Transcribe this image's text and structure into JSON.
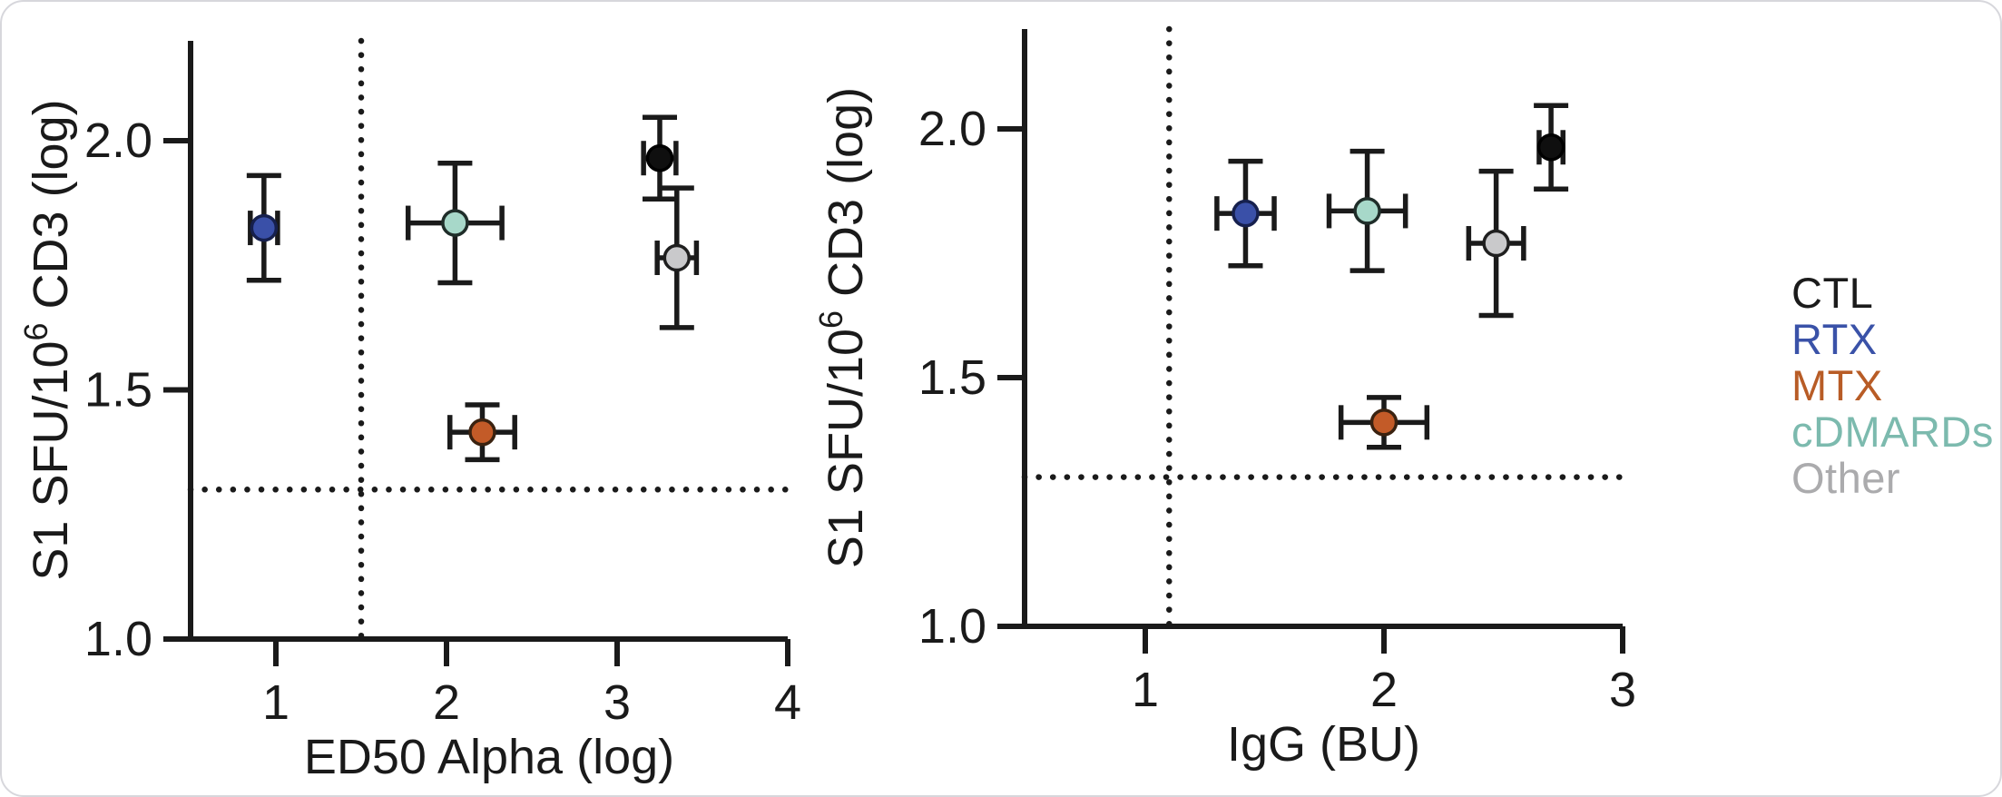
{
  "figure": {
    "background": "#ffffff",
    "border_color": "#d7d7dc",
    "text_color": "#1a1a1a"
  },
  "legend": {
    "items": [
      {
        "label": "CTL",
        "color": "#1b1b1b"
      },
      {
        "label": "RTX",
        "color": "#3a52a8"
      },
      {
        "label": "MTX",
        "color": "#b85c26"
      },
      {
        "label": "cDMARDs",
        "color": "#7cbaae"
      },
      {
        "label": "Other",
        "color": "#ababad"
      }
    ]
  },
  "marker_styles": {
    "CTL": {
      "fill": "#0f0f0f",
      "stroke": "#000000"
    },
    "RTX": {
      "fill": "#3a50a8",
      "stroke": "#16204d"
    },
    "MTX": {
      "fill": "#c35b28",
      "stroke": "#3a2210"
    },
    "cDMARDs": {
      "fill": "#a7d8c9",
      "stroke": "#1f2d29"
    },
    "Other": {
      "fill": "#c9c9cb",
      "stroke": "#1f1f1f"
    }
  },
  "chart_data": [
    {
      "type": "scatter",
      "title": "",
      "xlabel": "ED50 Alpha (log)",
      "ylabel": "S1 SFU/10⁶ CD3 (log)",
      "ylabel_parts": [
        {
          "t": "S1 SFU/10"
        },
        {
          "t": "6",
          "sup": true
        },
        {
          "t": " CD3 (log)"
        }
      ],
      "xlim": [
        0.5,
        4.0
      ],
      "ylim": [
        1.0,
        2.2
      ],
      "xticks": [
        1,
        2,
        3,
        4
      ],
      "yticks": [
        "1.0",
        "1.5",
        "2.0"
      ],
      "grid": false,
      "reference_lines": {
        "vertical_x": 1.5,
        "horizontal_y": 1.3,
        "style": "dotted"
      },
      "points": [
        {
          "group": "RTX",
          "x": 0.93,
          "y": 1.825,
          "xerr": 0.08,
          "yerr": 0.105
        },
        {
          "group": "cDMARDs",
          "x": 2.05,
          "y": 1.835,
          "xerr": 0.275,
          "yerr": 0.12
        },
        {
          "group": "MTX",
          "x": 2.21,
          "y": 1.415,
          "xerr": 0.19,
          "yerr": 0.055
        },
        {
          "group": "CTL",
          "x": 3.25,
          "y": 1.965,
          "xerr": 0.095,
          "yerr": 0.082
        },
        {
          "group": "Other",
          "x": 3.35,
          "y": 1.765,
          "xerr": 0.115,
          "yerr": 0.14
        }
      ]
    },
    {
      "type": "scatter",
      "title": "",
      "xlabel": "IgG (BU)",
      "ylabel": "S1 SFU/10⁶ CD3 (log)",
      "ylabel_parts": [
        {
          "t": "S1 SFU/10"
        },
        {
          "t": "6",
          "sup": true
        },
        {
          "t": " CD3 (log)"
        }
      ],
      "xlim": [
        0.5,
        3.0
      ],
      "ylim": [
        1.0,
        2.2
      ],
      "xticks": [
        1,
        2,
        3
      ],
      "yticks": [
        "1.0",
        "1.5",
        "2.0"
      ],
      "grid": false,
      "reference_lines": {
        "vertical_x": 1.1,
        "horizontal_y": 1.3,
        "style": "dotted"
      },
      "points": [
        {
          "group": "RTX",
          "x": 1.42,
          "y": 1.83,
          "xerr": 0.12,
          "yerr": 0.105
        },
        {
          "group": "cDMARDs",
          "x": 1.93,
          "y": 1.835,
          "xerr": 0.16,
          "yerr": 0.12
        },
        {
          "group": "MTX",
          "x": 2.0,
          "y": 1.41,
          "xerr": 0.18,
          "yerr": 0.05
        },
        {
          "group": "Other",
          "x": 2.47,
          "y": 1.77,
          "xerr": 0.115,
          "yerr": 0.145
        },
        {
          "group": "CTL",
          "x": 2.7,
          "y": 1.963,
          "xerr": 0.05,
          "yerr": 0.084
        }
      ]
    }
  ]
}
